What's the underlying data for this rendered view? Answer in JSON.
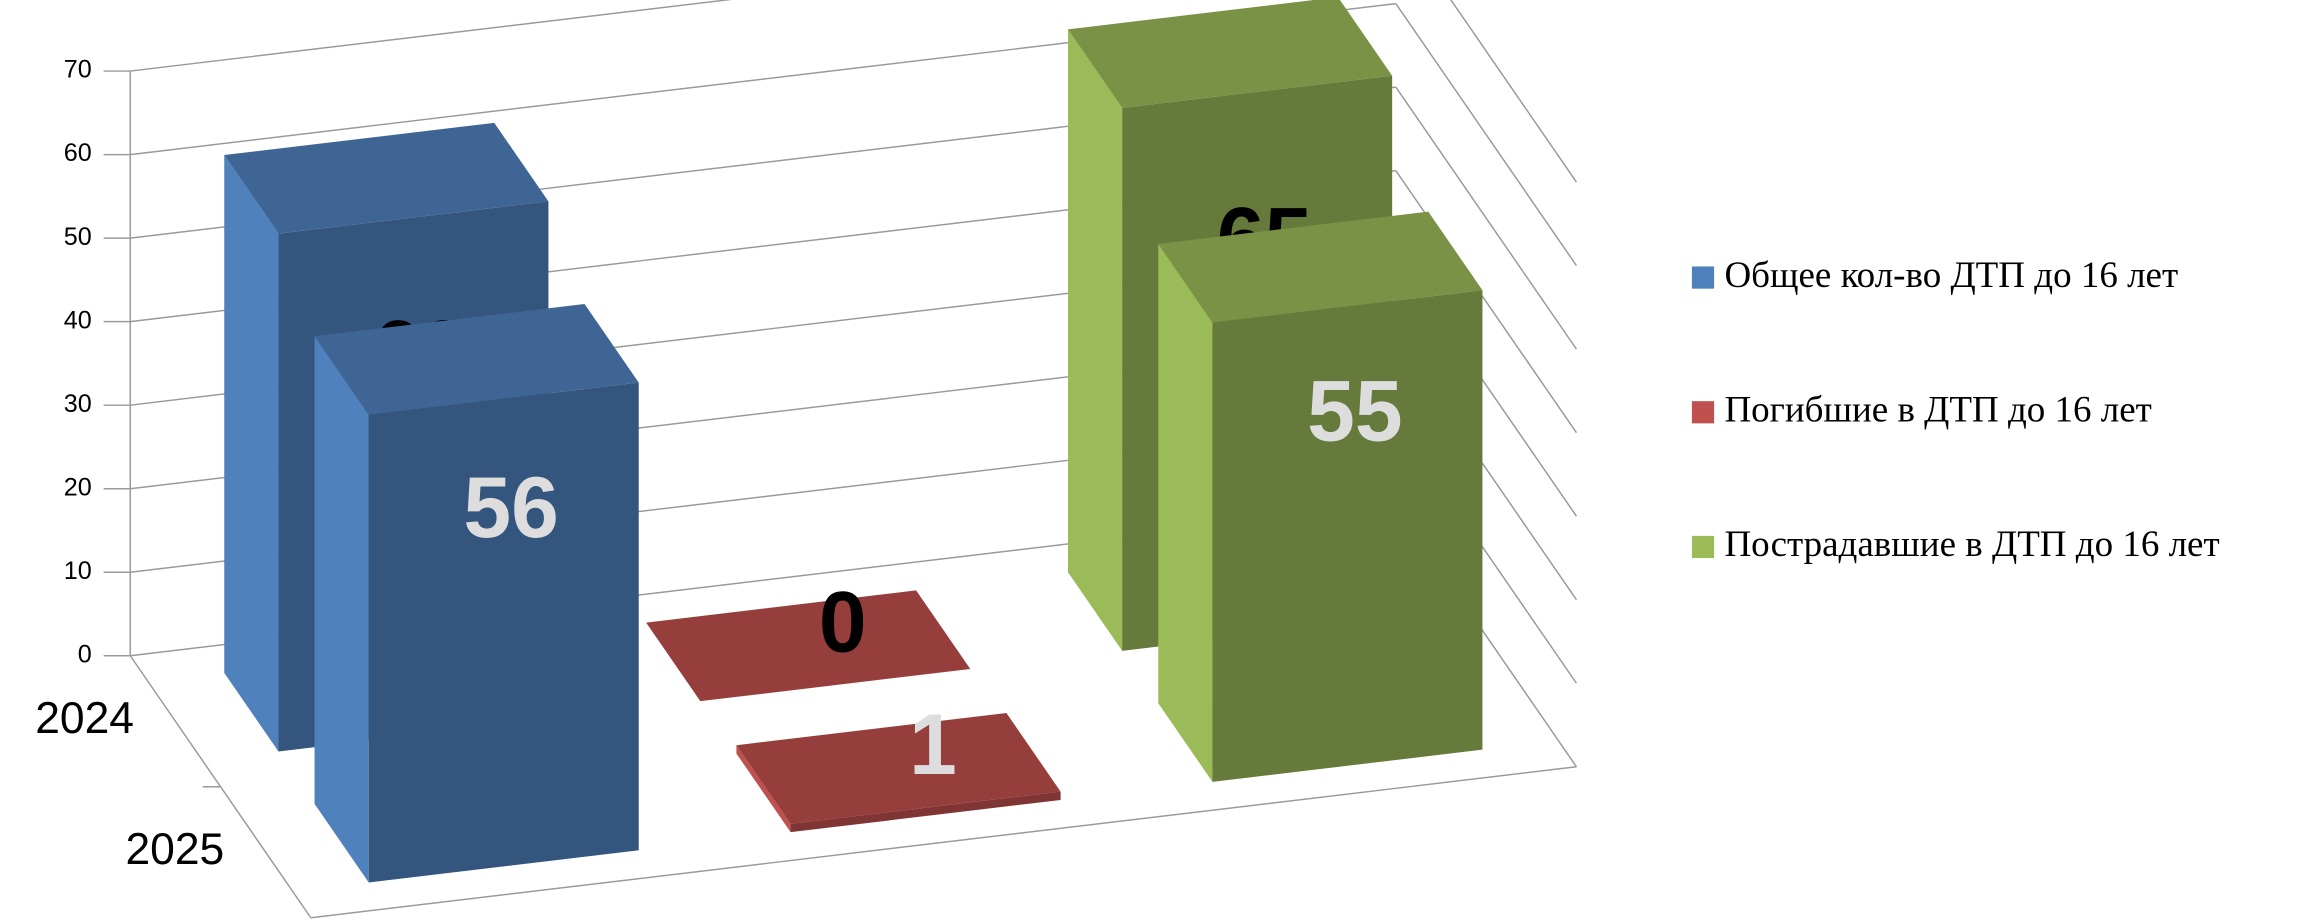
{
  "chart_data": {
    "type": "bar3d",
    "categories": [
      "2024",
      "2025"
    ],
    "series": [
      {
        "name": "Общее кол-во ДТП до 16 лет",
        "color": "#4f81bd",
        "values": [
          62,
          56
        ]
      },
      {
        "name": "Погибшие в ДТП до 16 лет",
        "color": "#c0504d",
        "values": [
          0,
          1
        ]
      },
      {
        "name": "Пострадавшие в ДТП до 16 лет",
        "color": "#9bbb59",
        "values": [
          65,
          55
        ]
      }
    ],
    "ylim": [
      0,
      70
    ],
    "yticks": [
      0,
      10,
      20,
      30,
      40,
      50,
      60,
      70
    ],
    "grid": true,
    "legend": "right"
  }
}
